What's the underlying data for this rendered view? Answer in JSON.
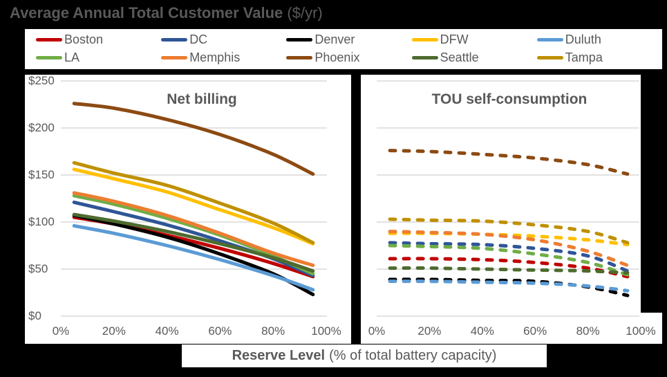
{
  "title": {
    "main": "Average Annual Total Customer Value",
    "unit": "($/yr)"
  },
  "legend": {
    "items": [
      {
        "label": "Boston",
        "color": "#C00000"
      },
      {
        "label": "DC",
        "color": "#2F5597"
      },
      {
        "label": "Denver",
        "color": "#000000"
      },
      {
        "label": "DFW",
        "color": "#FFC000"
      },
      {
        "label": "Duluth",
        "color": "#5B9BD5"
      },
      {
        "label": "LA",
        "color": "#70AD47"
      },
      {
        "label": "Memphis",
        "color": "#ED7D31"
      },
      {
        "label": "Phoenix",
        "color": "#8C4A12"
      },
      {
        "label": "Seattle",
        "color": "#4E6B2F"
      },
      {
        "label": "Tampa",
        "color": "#BF9000"
      }
    ]
  },
  "x_axis_label": {
    "bold": "Reserve Level",
    "rest": "(% of total battery capacity)"
  },
  "styles": {
    "text_color": "#595959",
    "gridline_color": "#D9D9D9",
    "background": "#000000",
    "panel_background": "#FFFFFF"
  },
  "chart_data": [
    {
      "type": "line",
      "title": "Net billing",
      "line_style": "solid",
      "x": [
        5,
        20,
        40,
        60,
        80,
        95
      ],
      "x_unit": "% reserve level",
      "xlim": [
        0,
        100
      ],
      "ylim": [
        0,
        250
      ],
      "grid": "horizontal",
      "y_ticks": [
        "$0",
        "$50",
        "$100",
        "$150",
        "$200",
        "$250"
      ],
      "x_ticks": [
        "0%",
        "20%",
        "40%",
        "60%",
        "80%",
        "100%"
      ],
      "series": [
        {
          "name": "Boston",
          "color": "#C00000",
          "values": [
            105,
            98,
            86,
            72,
            56,
            42
          ]
        },
        {
          "name": "DC",
          "color": "#2F5597",
          "values": [
            121,
            111,
            97,
            80,
            61,
            43
          ]
        },
        {
          "name": "Denver",
          "color": "#000000",
          "values": [
            107,
            98,
            84,
            66,
            45,
            23
          ]
        },
        {
          "name": "DFW",
          "color": "#FFC000",
          "values": [
            156,
            146,
            132,
            113,
            94,
            77
          ]
        },
        {
          "name": "Duluth",
          "color": "#5B9BD5",
          "values": [
            96,
            88,
            75,
            60,
            43,
            28
          ]
        },
        {
          "name": "LA",
          "color": "#70AD47",
          "values": [
            128,
            119,
            104,
            86,
            64,
            45
          ]
        },
        {
          "name": "Memphis",
          "color": "#ED7D31",
          "values": [
            131,
            122,
            107,
            88,
            67,
            54
          ]
        },
        {
          "name": "Phoenix",
          "color": "#8C4A12",
          "values": [
            226,
            221,
            209,
            193,
            172,
            151
          ]
        },
        {
          "name": "Seattle",
          "color": "#4E6B2F",
          "values": [
            108,
            101,
            90,
            77,
            62,
            48
          ]
        },
        {
          "name": "Tampa",
          "color": "#BF9000",
          "values": [
            163,
            152,
            139,
            120,
            99,
            78
          ]
        }
      ]
    },
    {
      "type": "line",
      "title": "TOU self-consumption",
      "line_style": "dashed",
      "x": [
        5,
        20,
        40,
        60,
        80,
        95
      ],
      "x_unit": "% reserve level",
      "xlim": [
        0,
        100
      ],
      "ylim": [
        0,
        250
      ],
      "grid": "horizontal",
      "x_ticks": [
        "0%",
        "20%",
        "40%",
        "60%",
        "80%",
        "100%"
      ],
      "series": [
        {
          "name": "Boston",
          "color": "#C00000",
          "values": [
            61,
            61,
            60,
            57,
            51,
            42
          ]
        },
        {
          "name": "DC",
          "color": "#2F5597",
          "values": [
            78,
            77,
            76,
            72,
            64,
            48
          ]
        },
        {
          "name": "Denver",
          "color": "#000000",
          "values": [
            39,
            39,
            38,
            37,
            31,
            22
          ]
        },
        {
          "name": "DFW",
          "color": "#FFC000",
          "values": [
            88,
            88,
            87,
            85,
            81,
            76
          ]
        },
        {
          "name": "Duluth",
          "color": "#5B9BD5",
          "values": [
            37,
            37,
            36,
            35,
            32,
            27
          ]
        },
        {
          "name": "LA",
          "color": "#70AD47",
          "values": [
            75,
            74,
            72,
            66,
            57,
            44
          ]
        },
        {
          "name": "Memphis",
          "color": "#ED7D31",
          "values": [
            90,
            89,
            87,
            81,
            69,
            54
          ]
        },
        {
          "name": "Phoenix",
          "color": "#8C4A12",
          "values": [
            176,
            175,
            172,
            168,
            161,
            151
          ]
        },
        {
          "name": "Seattle",
          "color": "#4E6B2F",
          "values": [
            51,
            51,
            50,
            49,
            48,
            46
          ]
        },
        {
          "name": "Tampa",
          "color": "#BF9000",
          "values": [
            103,
            102,
            101,
            97,
            90,
            78
          ]
        }
      ]
    }
  ]
}
